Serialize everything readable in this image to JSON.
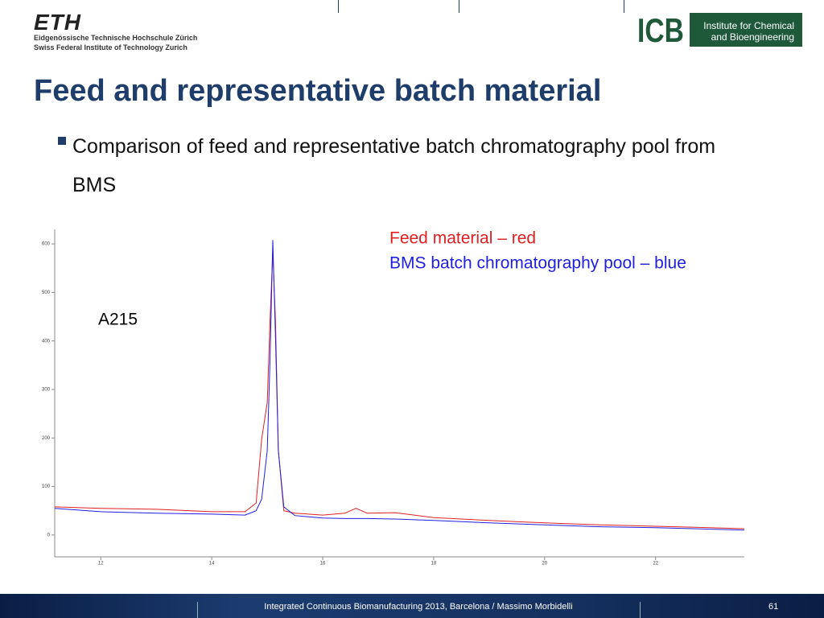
{
  "header": {
    "eth_logo": "ETH",
    "eth_line1": "Eidgenössische Technische Hochschule Zürich",
    "eth_line2": "Swiss Federal Institute of Technology Zurich",
    "icb_logo": "ICB",
    "icb_line1": "Institute for Chemical",
    "icb_line2": "and Bioengineering"
  },
  "slide": {
    "title": "Feed and representative batch material",
    "bullet": "Comparison of feed and representative batch chromatography pool from BMS"
  },
  "chart_data": {
    "type": "line",
    "x": [
      11.17,
      12,
      13,
      14,
      14.6,
      14.8,
      14.9,
      15.0,
      15.05,
      15.1,
      15.15,
      15.2,
      15.3,
      15.5,
      16,
      16.4,
      16.6,
      16.8,
      17.3,
      18,
      19,
      20,
      21,
      22,
      23,
      23.6
    ],
    "series": [
      {
        "color": "#e02020",
        "values": [
          58,
          55,
          53,
          48,
          48,
          66,
          198,
          273,
          438,
          585,
          438,
          174,
          50,
          45,
          41,
          45,
          55,
          45,
          46,
          36,
          30,
          25,
          21,
          18,
          15,
          13
        ]
      },
      {
        "color": "#2020e0",
        "values": [
          55,
          48,
          45,
          43,
          41,
          50,
          74,
          174,
          355,
          608,
          405,
          174,
          58,
          40,
          35,
          34,
          34,
          34,
          33,
          30,
          25,
          21,
          17,
          15,
          12,
          10
        ]
      }
    ],
    "xlim": [
      11.17,
      23.6
    ],
    "ylim": [
      -45,
      630
    ],
    "xticks": [
      12,
      14,
      16,
      18,
      20,
      22
    ],
    "yticks": [
      0,
      100,
      200,
      300,
      400,
      500,
      600
    ],
    "annotations": [
      {
        "text": "Feed material – red",
        "color": "#e02020"
      },
      {
        "text": "BMS batch chromatography pool – blue",
        "color": "#2020e0"
      },
      {
        "text": "A215",
        "color": "#000000"
      }
    ]
  },
  "footer": {
    "text": "Integrated Continuous  Biomanufacturing  2013, Barcelona / Massimo Morbidelli",
    "page": "61"
  }
}
